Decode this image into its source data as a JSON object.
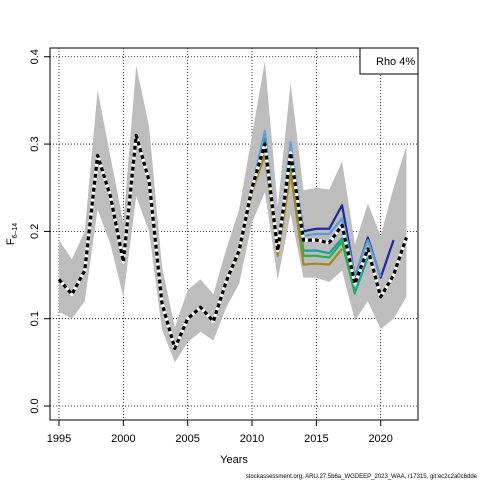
{
  "chart_data": {
    "type": "line",
    "xlabel": "Years",
    "ylabel_main": "F",
    "ylabel_sub": "6–14",
    "xlim": [
      1994.3,
      2022.9
    ],
    "ylim": [
      -0.016,
      0.41
    ],
    "xticks": [
      1995,
      2000,
      2005,
      2010,
      2015,
      2020
    ],
    "yticks": [
      0.0,
      0.1,
      0.2,
      0.3,
      0.4
    ],
    "ytick_labels": [
      "0.0",
      "0.1",
      "0.2",
      "0.3",
      "0.4"
    ],
    "grid": true,
    "legend": {
      "position": "top-right",
      "label": "Rho 4%"
    },
    "footer": "stockassessment.org, ARU.27.5b6a_WGDEEP_2023_WAA, r17315, git:ec2c2a0c6dde",
    "band": {
      "x": [
        1995,
        1996,
        1997,
        1998,
        1999,
        2000,
        2001,
        2002,
        2003,
        2004,
        2005,
        2006,
        2007,
        2008,
        2009,
        2010,
        2011,
        2012,
        2013,
        2014,
        2015,
        2016,
        2017,
        2018,
        2019,
        2020,
        2021,
        2022
      ],
      "lower": [
        0.108,
        0.1,
        0.12,
        0.225,
        0.185,
        0.125,
        0.24,
        0.2,
        0.088,
        0.05,
        0.073,
        0.085,
        0.075,
        0.113,
        0.14,
        0.21,
        0.245,
        0.145,
        0.22,
        0.147,
        0.147,
        0.142,
        0.155,
        0.098,
        0.12,
        0.088,
        0.1,
        0.125
      ],
      "upper": [
        0.19,
        0.168,
        0.2,
        0.362,
        0.285,
        0.21,
        0.39,
        0.32,
        0.16,
        0.09,
        0.133,
        0.145,
        0.128,
        0.18,
        0.225,
        0.31,
        0.395,
        0.228,
        0.37,
        0.247,
        0.25,
        0.248,
        0.28,
        0.185,
        0.232,
        0.195,
        0.25,
        0.298
      ]
    },
    "series": [
      {
        "color": "#1a2a9a",
        "x": [
          1995,
          1996,
          1997,
          1998,
          1999,
          2000,
          2001,
          2002,
          2003,
          2004,
          2005,
          2006,
          2007,
          2008,
          2009,
          2010,
          2011,
          2012,
          2013,
          2014,
          2015,
          2016,
          2017,
          2018,
          2019,
          2020,
          2021
        ],
        "y": [
          0.145,
          0.128,
          0.155,
          0.287,
          0.24,
          0.165,
          0.31,
          0.258,
          0.118,
          0.066,
          0.1,
          0.113,
          0.097,
          0.143,
          0.178,
          0.25,
          0.31,
          0.178,
          0.295,
          0.2,
          0.203,
          0.203,
          0.23,
          0.148,
          0.193,
          0.147,
          0.19
        ]
      },
      {
        "color": "#5a9fd8",
        "x": [
          1995,
          1996,
          1997,
          1998,
          1999,
          2000,
          2001,
          2002,
          2003,
          2004,
          2005,
          2006,
          2007,
          2008,
          2009,
          2010,
          2011,
          2012,
          2013,
          2014,
          2015,
          2016,
          2017,
          2018,
          2019,
          2020
        ],
        "y": [
          0.145,
          0.128,
          0.155,
          0.287,
          0.24,
          0.165,
          0.31,
          0.258,
          0.118,
          0.066,
          0.1,
          0.113,
          0.097,
          0.143,
          0.178,
          0.25,
          0.315,
          0.18,
          0.302,
          0.195,
          0.197,
          0.197,
          0.215,
          0.15,
          0.19,
          0.148
        ]
      },
      {
        "color": "#1aa0a0",
        "x": [
          1995,
          1996,
          1997,
          1998,
          1999,
          2000,
          2001,
          2002,
          2003,
          2004,
          2005,
          2006,
          2007,
          2008,
          2009,
          2010,
          2011,
          2012,
          2013,
          2014,
          2015,
          2016,
          2017,
          2018,
          2019
        ],
        "y": [
          0.145,
          0.128,
          0.155,
          0.287,
          0.24,
          0.165,
          0.31,
          0.258,
          0.118,
          0.066,
          0.1,
          0.113,
          0.097,
          0.143,
          0.178,
          0.25,
          0.305,
          0.178,
          0.28,
          0.178,
          0.178,
          0.175,
          0.192,
          0.13,
          0.17
        ]
      },
      {
        "color": "#22b04a",
        "x": [
          1995,
          1996,
          1997,
          1998,
          1999,
          2000,
          2001,
          2002,
          2003,
          2004,
          2005,
          2006,
          2007,
          2008,
          2009,
          2010,
          2011,
          2012,
          2013,
          2014,
          2015,
          2016,
          2017,
          2018
        ],
        "y": [
          0.145,
          0.128,
          0.155,
          0.287,
          0.24,
          0.165,
          0.31,
          0.258,
          0.118,
          0.066,
          0.1,
          0.113,
          0.097,
          0.143,
          0.175,
          0.248,
          0.295,
          0.175,
          0.275,
          0.172,
          0.172,
          0.17,
          0.188,
          0.128
        ]
      },
      {
        "color": "#a08a1a",
        "x": [
          1995,
          1996,
          1997,
          1998,
          1999,
          2000,
          2001,
          2002,
          2003,
          2004,
          2005,
          2006,
          2007,
          2008,
          2009,
          2010,
          2011,
          2012,
          2013,
          2014,
          2015,
          2016,
          2017
        ],
        "y": [
          0.145,
          0.128,
          0.155,
          0.287,
          0.24,
          0.165,
          0.31,
          0.258,
          0.118,
          0.066,
          0.1,
          0.113,
          0.097,
          0.143,
          0.175,
          0.245,
          0.288,
          0.172,
          0.268,
          0.162,
          0.163,
          0.162,
          0.18
        ]
      },
      {
        "color": "#000000",
        "dashed": true,
        "x": [
          1995,
          1996,
          1997,
          1998,
          1999,
          2000,
          2001,
          2002,
          2003,
          2004,
          2005,
          2006,
          2007,
          2008,
          2009,
          2010,
          2011,
          2012,
          2013,
          2014,
          2015,
          2016,
          2017,
          2018,
          2019,
          2020,
          2021,
          2022
        ],
        "y": [
          0.145,
          0.128,
          0.155,
          0.287,
          0.24,
          0.165,
          0.31,
          0.258,
          0.118,
          0.066,
          0.1,
          0.113,
          0.097,
          0.143,
          0.178,
          0.25,
          0.3,
          0.178,
          0.29,
          0.19,
          0.19,
          0.187,
          0.207,
          0.14,
          0.18,
          0.125,
          0.15,
          0.193
        ]
      }
    ]
  }
}
